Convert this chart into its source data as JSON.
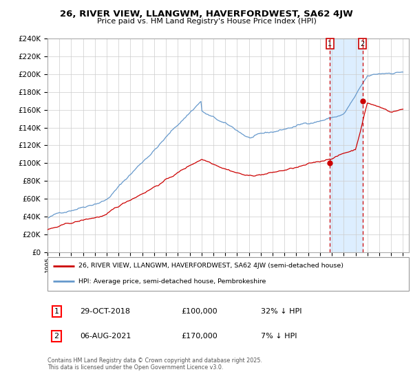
{
  "title": "26, RIVER VIEW, LLANGWM, HAVERFORDWEST, SA62 4JW",
  "subtitle": "Price paid vs. HM Land Registry's House Price Index (HPI)",
  "legend_label_red": "26, RIVER VIEW, LLANGWM, HAVERFORDWEST, SA62 4JW (semi-detached house)",
  "legend_label_blue": "HPI: Average price, semi-detached house, Pembrokeshire",
  "sale1_date": "29-OCT-2018",
  "sale1_price": "£100,000",
  "sale1_hpi": "32% ↓ HPI",
  "sale2_date": "06-AUG-2021",
  "sale2_price": "£170,000",
  "sale2_hpi": "7% ↓ HPI",
  "footnote": "Contains HM Land Registry data © Crown copyright and database right 2025.\nThis data is licensed under the Open Government Licence v3.0.",
  "red_color": "#cc0000",
  "blue_color": "#6699cc",
  "bg_color": "#ffffff",
  "grid_color": "#cccccc",
  "highlight_bg": "#ddeeff",
  "ylim": [
    0,
    240000
  ],
  "yticks": [
    0,
    20000,
    40000,
    60000,
    80000,
    100000,
    120000,
    140000,
    160000,
    180000,
    200000,
    220000,
    240000
  ],
  "sale1_year": 2018.83,
  "sale2_year": 2021.58,
  "sale1_red_val": 100000,
  "sale2_red_val": 170000
}
